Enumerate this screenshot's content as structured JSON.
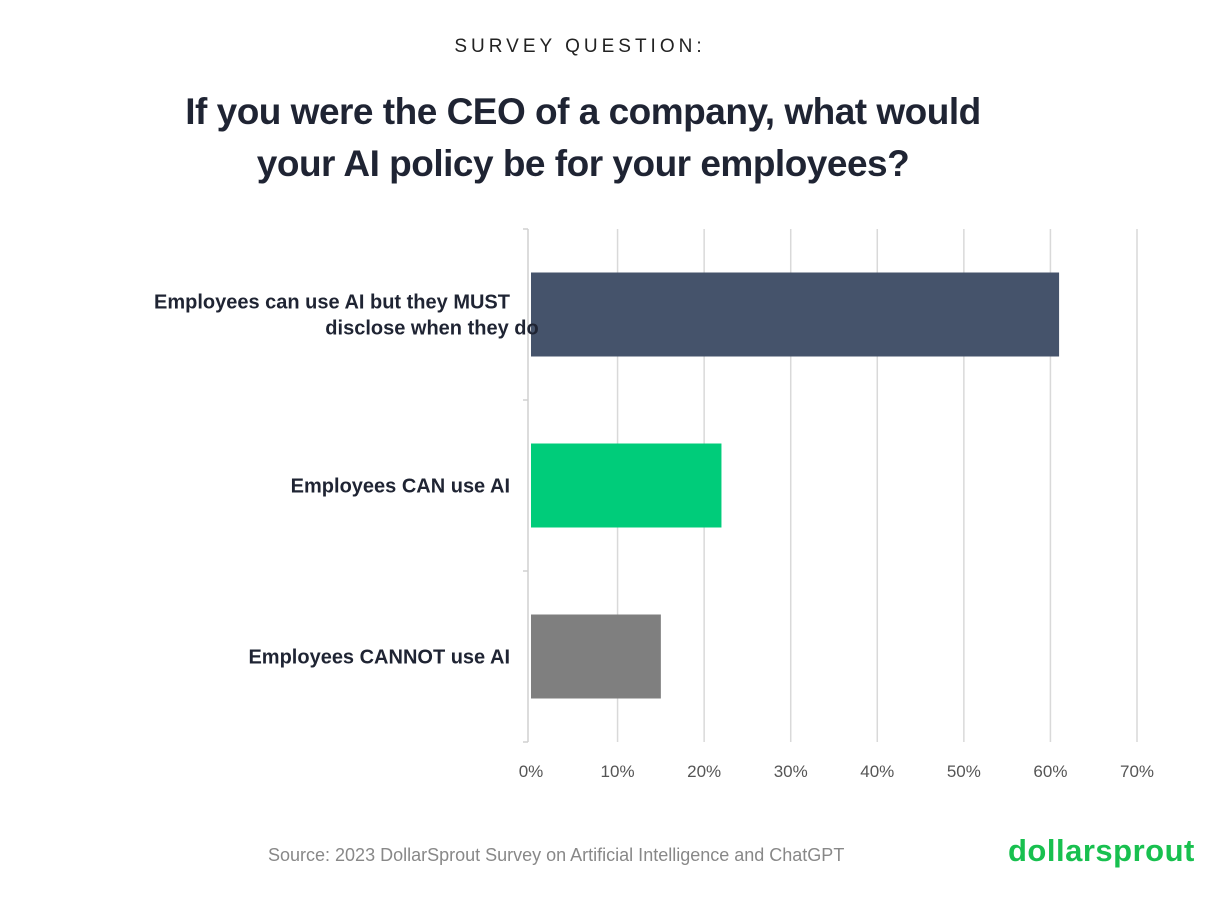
{
  "kicker": "SURVEY QUESTION:",
  "title_lines": [
    "If you were the CEO of a company, what would",
    "your AI policy be for your employees?"
  ],
  "source": "Source: 2023 DollarSprout Survey on Artificial Intelligence and ChatGPT",
  "logo": "dollarsprout",
  "chart_data": {
    "type": "bar",
    "orientation": "horizontal",
    "title": "If you were the CEO of a company, what would your AI policy be for your employees?",
    "categories": [
      [
        "Employees can use AI but they MUST",
        "disclose when they do"
      ],
      [
        "Employees CAN use AI"
      ],
      [
        "Employees CANNOT use AI"
      ]
    ],
    "values": [
      61,
      22,
      15
    ],
    "colors": [
      "#45536b",
      "#00cc7a",
      "#7f7f7f"
    ],
    "xlim": [
      0,
      70
    ],
    "xticks": [
      "0%",
      "10%",
      "20%",
      "30%",
      "40%",
      "50%",
      "60%",
      "70%"
    ],
    "xlabel": "",
    "ylabel": "",
    "grid": true
  }
}
